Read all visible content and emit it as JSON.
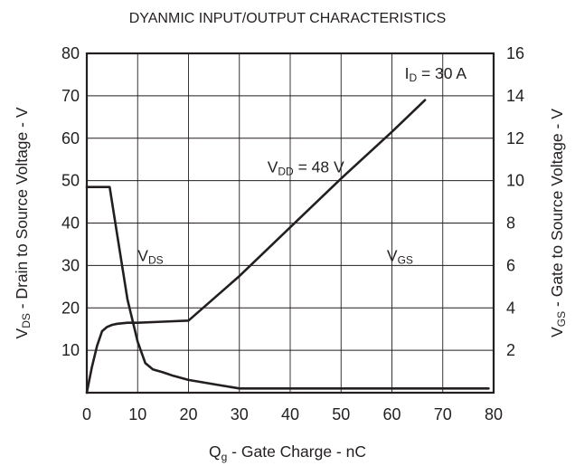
{
  "chart_data": {
    "type": "line",
    "title": "DYANMIC INPUT/OUTPUT CHARACTERISTICS",
    "xlabel": {
      "main": "Q",
      "sub": "g",
      "rest": " - Gate Charge - nC"
    },
    "ylabel_left": {
      "main": "V",
      "sub": "DS",
      "rest": " - Drain to Source Voltage - V"
    },
    "ylabel_right": {
      "main": "V",
      "sub": "GS",
      "rest": " - Gate to Source Voltage - V"
    },
    "xlim": [
      0,
      80
    ],
    "ylim_left": [
      0,
      80
    ],
    "ylim_right": [
      0,
      16
    ],
    "x_ticks": [
      "0",
      "10",
      "20",
      "30",
      "40",
      "50",
      "60",
      "70",
      "80"
    ],
    "y_left_ticks": [
      "10",
      "20",
      "30",
      "40",
      "50",
      "60",
      "70",
      "80"
    ],
    "y_right_ticks": [
      "2",
      "4",
      "6",
      "8",
      "10",
      "12",
      "14",
      "16"
    ],
    "grid": true,
    "annotations": {
      "id": {
        "main": "I",
        "sub": "D",
        "rest": " = 30 A"
      },
      "vdd": {
        "main": "V",
        "sub": "DD",
        "rest": " = 48 V"
      },
      "vds": {
        "main": "V",
        "sub": "DS"
      },
      "vgs": {
        "main": "V",
        "sub": "GS"
      }
    },
    "series": [
      {
        "label": "VDS",
        "axis": "left",
        "x": [
          0,
          4.5,
          6,
          8,
          10,
          11.5,
          13,
          15,
          17,
          20,
          25,
          30,
          50,
          70,
          79
        ],
        "y": [
          48.5,
          48.5,
          37,
          22,
          12,
          7,
          5.5,
          4.8,
          4,
          3,
          2,
          1,
          1,
          1,
          1
        ]
      },
      {
        "label": "VGS",
        "axis": "right",
        "x": [
          0,
          1,
          2,
          3,
          4,
          5,
          6,
          8,
          10,
          15,
          20,
          30,
          40,
          50,
          60,
          66.5
        ],
        "y": [
          0,
          1.2,
          2.2,
          2.9,
          3.1,
          3.2,
          3.25,
          3.3,
          3.3,
          3.35,
          3.4,
          5.5,
          7.8,
          10.1,
          12.3,
          13.8
        ]
      }
    ]
  }
}
